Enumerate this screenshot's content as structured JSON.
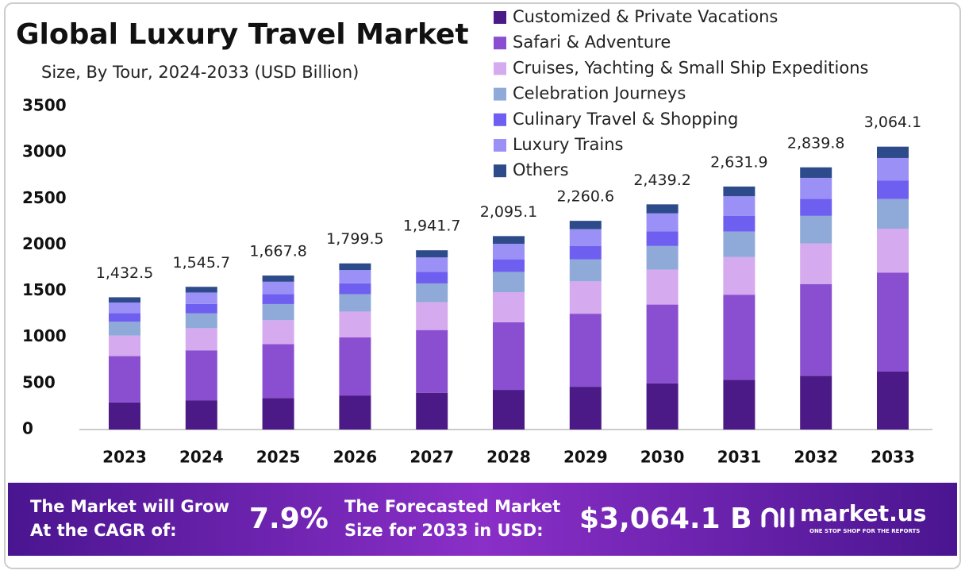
{
  "chart_data": {
    "type": "stacked-bar",
    "title": "Global Luxury Travel Market",
    "subtitle": "Size, By Tour, 2024-2033 (USD Billion)",
    "categories": [
      "2023",
      "2024",
      "2025",
      "2026",
      "2027",
      "2028",
      "2029",
      "2030",
      "2031",
      "2032",
      "2033"
    ],
    "series": [
      {
        "name": "Customized & Private Vacations",
        "color": "#4b1a86",
        "values": [
          293.7,
          316.9,
          341.9,
          368.9,
          398.0,
          429.5,
          463.4,
          500.0,
          539.5,
          582.2,
          628.1
        ]
      },
      {
        "name": "Safari & Adventure",
        "color": "#8a4fd0",
        "values": [
          501.4,
          541.0,
          583.7,
          629.8,
          679.6,
          733.3,
          791.2,
          853.7,
          921.2,
          993.9,
          1072.4
        ]
      },
      {
        "name": "Cruises, Yachting & Small Ship Expeditions",
        "color": "#d6aaee",
        "values": [
          222.0,
          239.6,
          258.5,
          278.9,
          301.0,
          324.7,
          350.4,
          378.1,
          407.9,
          440.2,
          474.9
        ]
      },
      {
        "name": "Celebration Journeys",
        "color": "#8fa9d8",
        "values": [
          150.4,
          162.3,
          175.1,
          188.9,
          203.9,
          220.0,
          237.4,
          256.1,
          276.3,
          298.2,
          321.7
        ]
      },
      {
        "name": "Culinary Travel & Shopping",
        "color": "#6f5ff0",
        "values": [
          93.1,
          100.5,
          108.4,
          117.0,
          126.2,
          136.2,
          146.9,
          158.5,
          171.1,
          184.6,
          199.2
        ]
      },
      {
        "name": "Luxury Trains",
        "color": "#9b90f6",
        "values": [
          114.6,
          123.7,
          133.4,
          144.0,
          155.3,
          167.6,
          180.8,
          195.1,
          210.6,
          227.2,
          245.1
        ]
      },
      {
        "name": "Others",
        "color": "#2d4a8a",
        "values": [
          57.3,
          61.7,
          66.8,
          72.0,
          77.7,
          83.8,
          90.5,
          97.7,
          105.3,
          113.5,
          122.7
        ]
      }
    ],
    "totals": {
      "values": [
        1432.5,
        1545.7,
        1667.8,
        1799.5,
        1941.7,
        2095.1,
        2260.6,
        2439.2,
        2631.9,
        2839.8,
        3064.1
      ],
      "value_labels": [
        "1,432.5",
        "1,545.7",
        "1,667.8",
        "1,799.5",
        "1,941.7",
        "2,095.1",
        "2,260.6",
        "2,439.2",
        "2,631.9",
        "2,839.8",
        "3,064.1"
      ]
    },
    "ylim": [
      0,
      3500
    ],
    "yticks": [
      0,
      500,
      1000,
      1500,
      2000,
      2500,
      3000,
      3500
    ],
    "grid": false
  },
  "footer": {
    "cagr_text": [
      "The Market will Grow",
      "At the CAGR of:"
    ],
    "cagr_value": "7.9%",
    "forecast_text": [
      "The Forecasted Market",
      "Size for 2033 in USD:"
    ],
    "forecast_value": "$3,064.1 B",
    "brand": "market.us",
    "brand_tagline": "ONE STOP SHOP FOR THE REPORTS"
  }
}
